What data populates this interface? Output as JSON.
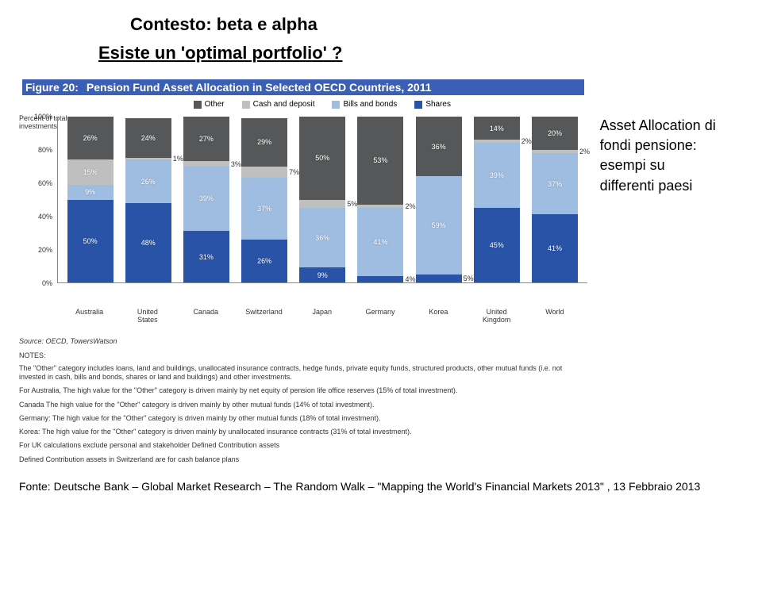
{
  "slide": {
    "title": "Contesto: beta e alpha",
    "subtitle": "Esiste un 'optimal portfolio' ?"
  },
  "side_text": {
    "line1": "Asset Allocation di",
    "line2": "fondi pensione:",
    "line3": "esempi su",
    "line4": "differenti paesi"
  },
  "figure": {
    "label": "Figure 20:",
    "title": "Pension Fund Asset Allocation in Selected OECD Countries, 2011",
    "title_bg": "#3a5fb5",
    "y_title_a": "Percent of total",
    "y_title_b": "investments",
    "legend": [
      {
        "label": "Other",
        "color": "#555758"
      },
      {
        "label": "Cash and deposit",
        "color": "#bfbfbf"
      },
      {
        "label": "Bills and bonds",
        "color": "#9fbde0"
      },
      {
        "label": "Shares",
        "color": "#2953a6"
      }
    ],
    "y_ticks": [
      "0%",
      "20%",
      "40%",
      "60%",
      "80%",
      "100%"
    ],
    "ylim": [
      0,
      100
    ],
    "categories": [
      "Australia",
      "United\nStates",
      "Canada",
      "Switzerland",
      "Japan",
      "Germany",
      "Korea",
      "United\nKingdom",
      "World"
    ],
    "series_order": [
      "shares",
      "bills_bonds",
      "cash",
      "other"
    ],
    "colors": {
      "shares": "#2953a6",
      "bills_bonds": "#9fbde0",
      "cash": "#bfbfbf",
      "other": "#555758"
    },
    "data": [
      {
        "shares": 50,
        "bills_bonds": 9,
        "cash": 15,
        "other": 26
      },
      {
        "shares": 48,
        "bills_bonds": 26,
        "cash": 1,
        "other": 24
      },
      {
        "shares": 31,
        "bills_bonds": 39,
        "cash": 3,
        "other": 27
      },
      {
        "shares": 26,
        "bills_bonds": 37,
        "cash": 7,
        "other": 29
      },
      {
        "shares": 9,
        "bills_bonds": 36,
        "cash": 5,
        "other": 50
      },
      {
        "shares": 4,
        "bills_bonds": 41,
        "cash": 2,
        "other": 53
      },
      {
        "shares": 5,
        "bills_bonds": 59,
        "cash": 0,
        "other": 36
      },
      {
        "shares": 45,
        "bills_bonds": 39,
        "cash": 2,
        "other": 14
      },
      {
        "shares": 41,
        "bills_bonds": 37,
        "cash": 2,
        "other": 20
      }
    ],
    "small_threshold": 8,
    "source": "Source: OECD, TowersWatson",
    "notes_head": "NOTES:",
    "notes": [
      "The \"Other\" category includes loans, land and buildings, unallocated insurance contracts, hedge funds, private equity funds, structured products, other mutual funds (i.e. not invested in cash, bills and bonds, shares or land and buildings) and other investments.",
      "For Australia, The high value for the \"Other\" category is driven mainly by net equity of pension life office reserves (15% of total investment).",
      "Canada The high value for the \"Other\" category is driven mainly by other mutual funds (14% of total investment).",
      "Germany: The high value for the \"Other\" category is driven mainly by other mutual funds (18% of total investment).",
      "Korea: The high value for the \"Other\" category is driven mainly by unallocated insurance contracts (31% of total investment).",
      "For UK calculations exclude personal and stakeholder Defined Contribution assets",
      "Defined Contribution assets in Switzerland are for cash balance plans"
    ]
  },
  "footer": "Fonte:  Deutsche Bank – Global Market Research – The Random Walk – \"Mapping the World's Financial Markets 2013\" ,  13 Febbraio 2013"
}
